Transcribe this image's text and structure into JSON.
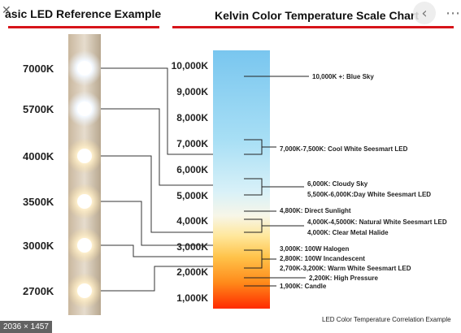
{
  "header": {
    "left_title": "asic LED Reference Example",
    "right_title": "Kelvin Color Temperature Scale Chart"
  },
  "controls": {
    "close_glyph": "✕",
    "prev_glyph": "‹",
    "more_glyph": "⋯"
  },
  "led_labels": [
    "7000K",
    "5700K",
    "4000K",
    "3500K",
    "3000K",
    "2700K"
  ],
  "scale_ticks": [
    "10,000K",
    "9,000K",
    "8,000K",
    "7,000K",
    "6,000K",
    "5,000K",
    "4,000K",
    "3,000K",
    "2,000K",
    "1,000K"
  ],
  "annotations": [
    "10,000K +: Blue Sky",
    "7,000K-7,500K: Cool White Seesmart LED",
    "6,000K: Cloudy Sky",
    "5,500K-6,000K:Day White Seesmart LED",
    "4,800K: Direct Sunlight",
    "4,000K-4,5000K: Natural White Seesmart LED",
    "4,000K: Clear Metal Halide",
    "3,000K: 100W Halogen",
    "2,800K: 100W Incandescent",
    "2,700K-3,200K: Warm White Seesmart LED",
    "2,200K: High Pressure",
    "1,900K: Candle"
  ],
  "footer_caption": "LED Color Temperature Correlation Example",
  "image_dimensions": "2036 × 1457",
  "colors": {
    "accent_red": "#d7141a",
    "scale_top": "#7ec8ee",
    "scale_mid": "#e8f4e8",
    "scale_bottom": "#ff2a00"
  }
}
